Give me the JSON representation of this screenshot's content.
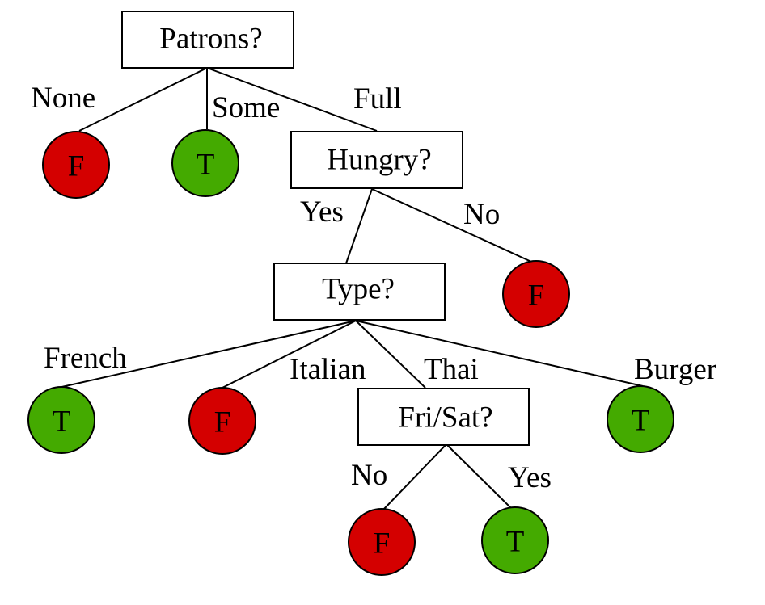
{
  "colors": {
    "false_leaf": "#d40000",
    "true_leaf": "#44aa00",
    "line": "#000000",
    "box_fill": "#ffffff"
  },
  "tree": {
    "root": {
      "label": "Patrons?",
      "branches": {
        "none": {
          "label": "None",
          "leaf": "F"
        },
        "some": {
          "label": "Some",
          "leaf": "T"
        },
        "full": {
          "label": "Full"
        }
      }
    },
    "hungry": {
      "label": "Hungry?",
      "branches": {
        "yes": {
          "label": "Yes"
        },
        "no": {
          "label": "No",
          "leaf": "F"
        }
      }
    },
    "type": {
      "label": "Type?",
      "branches": {
        "french": {
          "label": "French",
          "leaf": "T"
        },
        "italian": {
          "label": "Italian",
          "leaf": "F"
        },
        "thai": {
          "label": "Thai"
        },
        "burger": {
          "label": "Burger",
          "leaf": "T"
        }
      }
    },
    "frisat": {
      "label": "Fri/Sat?",
      "branches": {
        "no": {
          "label": "No",
          "leaf": "F"
        },
        "yes": {
          "label": "Yes",
          "leaf": "T"
        }
      }
    }
  }
}
